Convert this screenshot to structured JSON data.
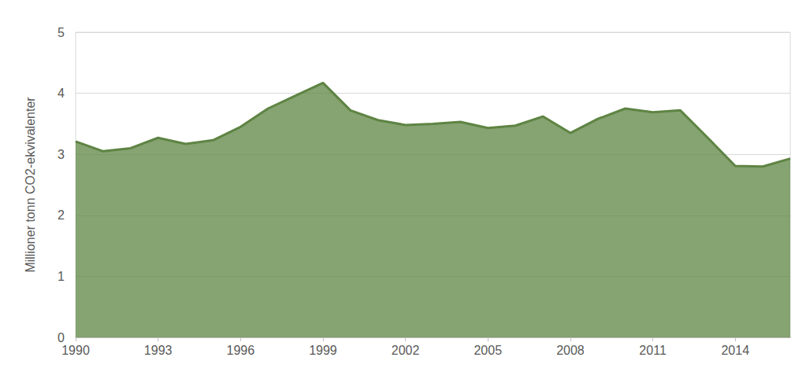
{
  "chart_data": {
    "type": "area",
    "y_label": "Millioner tonn CO2-ekvivalenter",
    "x": [
      1990,
      1991,
      1992,
      1993,
      1994,
      1995,
      1996,
      1997,
      1998,
      1999,
      2000,
      2001,
      2002,
      2003,
      2004,
      2005,
      2006,
      2007,
      2008,
      2009,
      2010,
      2011,
      2012,
      2013,
      2014,
      2015,
      2016
    ],
    "values": [
      3.21,
      3.05,
      3.1,
      3.27,
      3.17,
      3.23,
      3.45,
      3.75,
      3.96,
      4.17,
      3.72,
      3.56,
      3.48,
      3.5,
      3.53,
      3.43,
      3.47,
      3.62,
      3.35,
      3.58,
      3.75,
      3.69,
      3.72,
      3.27,
      2.81,
      2.8,
      2.93
    ],
    "color": "#5e8443",
    "xlim": [
      1990,
      2016
    ],
    "xticks": [
      1990,
      1993,
      1996,
      1999,
      2002,
      2005,
      2008,
      2011,
      2014
    ],
    "ylim": [
      0,
      5
    ],
    "yticks": [
      0,
      1,
      2,
      3,
      4,
      5
    ],
    "grid": true
  }
}
